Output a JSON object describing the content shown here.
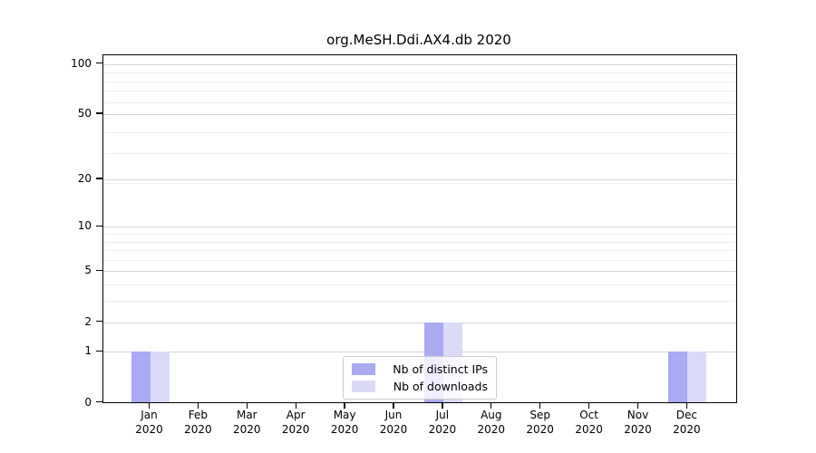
{
  "title": "org.MeSH.Ddi.AX4.db 2020",
  "chart_data": {
    "type": "bar",
    "title": "org.MeSH.Ddi.AX4.db 2020",
    "categories": [
      "Jan 2020",
      "Feb 2020",
      "Mar 2020",
      "Apr 2020",
      "May 2020",
      "Jun 2020",
      "Jul 2020",
      "Aug 2020",
      "Sep 2020",
      "Oct 2020",
      "Nov 2020",
      "Dec 2020"
    ],
    "series": [
      {
        "name": "Nb of distinct IPs",
        "color": "#a9a9f4",
        "values": [
          1,
          0,
          0,
          0,
          0,
          0,
          2,
          0,
          0,
          0,
          0,
          1
        ]
      },
      {
        "name": "Nb of downloads",
        "color": "#dadaf8",
        "values": [
          1,
          0,
          0,
          0,
          0,
          0,
          2,
          0,
          0,
          0,
          0,
          1
        ]
      }
    ],
    "yticks": [
      0,
      1,
      2,
      5,
      10,
      20,
      50,
      100
    ],
    "ylim": [
      0,
      113
    ],
    "scale": "log(1+x)",
    "xlabel": "",
    "ylabel": "",
    "grid": "horizontal",
    "legend_position": "bottom-center",
    "colors": {
      "major_grid": "#d4d4d4",
      "minor_grid": "#ededed",
      "axis": "#000000",
      "background": "#ffffff"
    }
  }
}
